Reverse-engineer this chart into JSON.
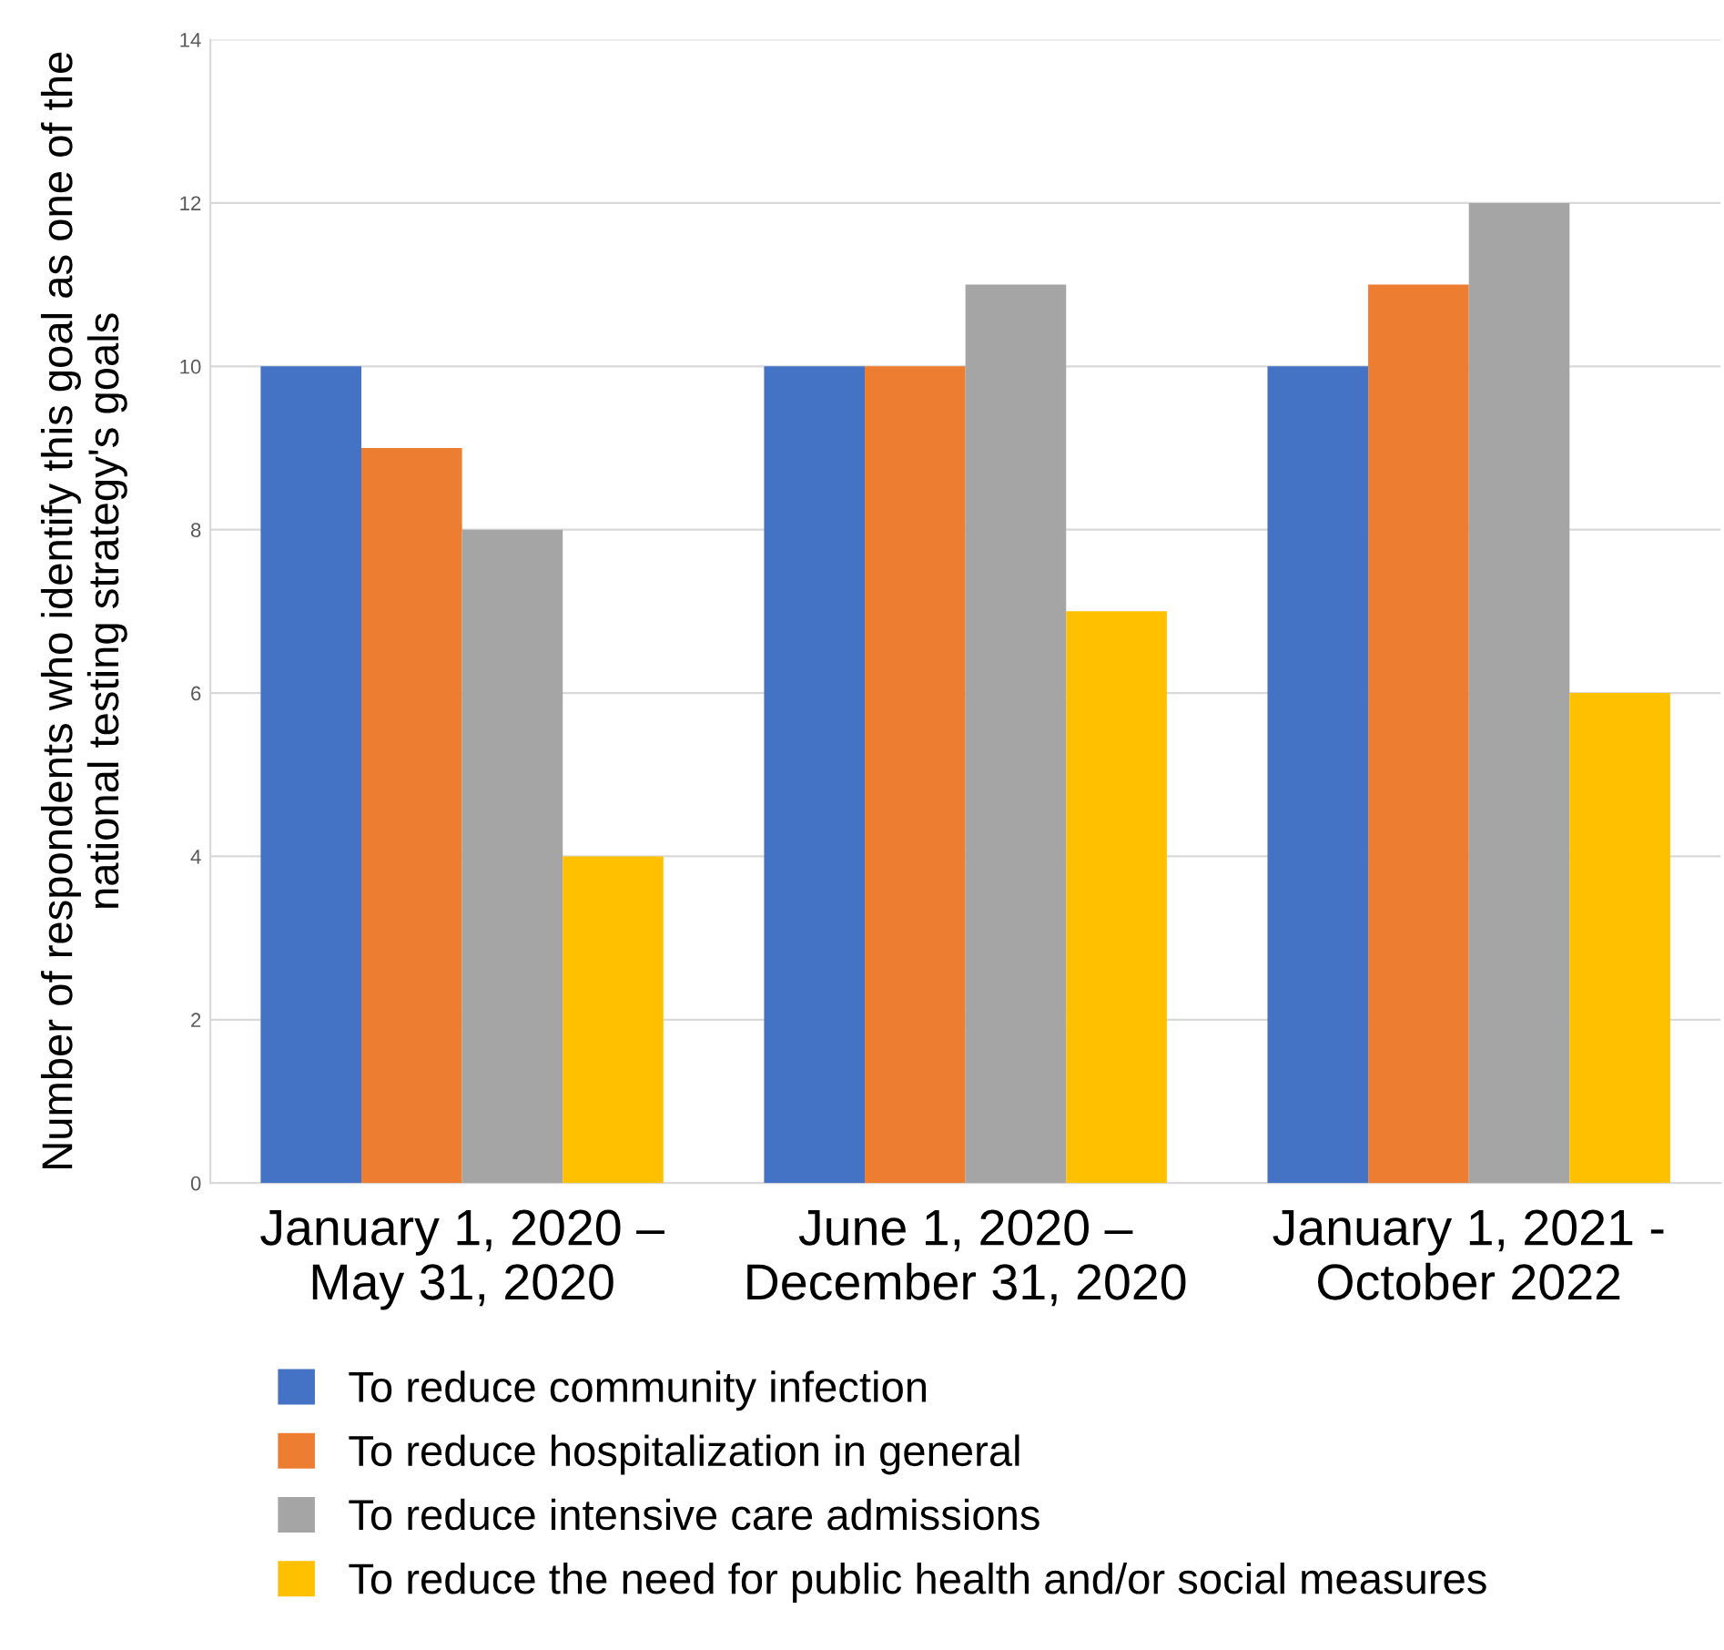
{
  "chart_data": {
    "type": "bar",
    "ylabel": "Number of respondents who identify this goal as one of the national testing strategy's goals",
    "categories": [
      "January 1, 2020 –\nMay 31, 2020",
      "June 1, 2020 –\nDecember 31, 2020",
      "January 1, 2021 -\nOctober 2022"
    ],
    "series": [
      {
        "name": "To reduce community infection",
        "color": "#4472c4",
        "values": [
          10,
          10,
          10
        ]
      },
      {
        "name": "To reduce hospitalization in general",
        "color": "#ed7d31",
        "values": [
          9,
          10,
          11
        ]
      },
      {
        "name": "To reduce intensive care admissions",
        "color": "#a5a5a5",
        "values": [
          8,
          11,
          12
        ]
      },
      {
        "name": "To reduce the need for public health and/or social measures",
        "color": "#ffc000",
        "values": [
          4,
          7,
          6
        ]
      }
    ],
    "ylim": [
      0,
      14
    ],
    "yticks": [
      0,
      2,
      4,
      6,
      8,
      10,
      12,
      14
    ],
    "grid": "y",
    "legend": "bottom"
  }
}
